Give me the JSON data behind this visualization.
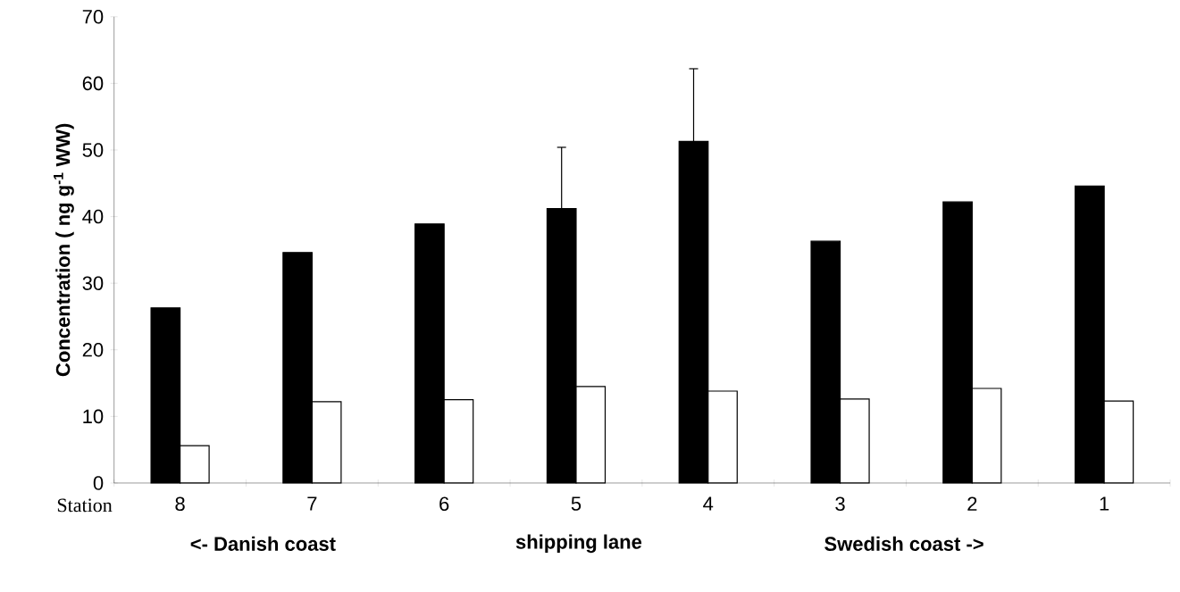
{
  "chart_data": {
    "type": "bar",
    "xlabel": "Station",
    "ylabel": "Concentration ( ng g$^{-1}$ WW)",
    "categories": [
      "8",
      "7",
      "6",
      "5",
      "4",
      "3",
      "2",
      "1"
    ],
    "series": [
      {
        "color": "#000000",
        "values": [
          26.3,
          34.6,
          38.9,
          41.2,
          51.3,
          36.3,
          42.2,
          44.6
        ],
        "errors": [
          null,
          null,
          null,
          9.2,
          10.9,
          null,
          null,
          null
        ]
      },
      {
        "color": "#ffffff",
        "values": [
          5.6,
          12.2,
          12.5,
          14.5,
          13.8,
          12.6,
          14.2,
          12.3
        ]
      }
    ],
    "ylim": [
      0,
      70
    ],
    "yticks": [
      0,
      10,
      20,
      30,
      40,
      50,
      60,
      70
    ],
    "grid": false,
    "annotations": [
      "<- Danish coast",
      "shipping lane",
      "Swedish coast ->"
    ]
  }
}
